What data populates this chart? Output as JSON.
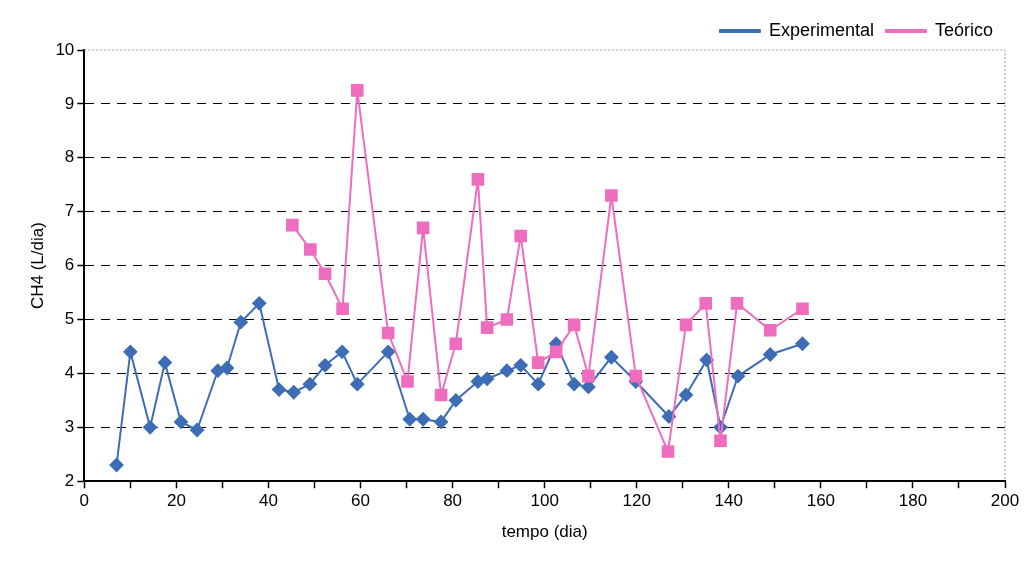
{
  "chart_data": {
    "type": "line",
    "xlabel": "tempo (dia)",
    "ylabel": "CH4 (L/dia)",
    "xlim": [
      0,
      200
    ],
    "xticks": [
      0,
      {
        "value": 10,
        "label": null
      },
      20,
      {
        "value": 30,
        "label": null
      },
      40,
      {
        "value": 50,
        "label": null
      },
      60,
      {
        "value": 70,
        "label": null
      },
      80,
      {
        "value": 90,
        "label": null
      },
      100,
      {
        "value": 110,
        "label": null
      },
      120,
      {
        "value": 130,
        "label": null
      },
      140,
      {
        "value": 150,
        "label": null
      },
      160,
      {
        "value": 170,
        "label": null
      },
      180,
      {
        "value": 190,
        "label": null
      },
      200
    ],
    "ylim": [
      2,
      10
    ],
    "yticks": [
      2,
      3,
      4,
      5,
      6,
      7,
      8,
      9,
      10
    ],
    "grid": "y",
    "legend": "top right",
    "line_style": "solid",
    "series": [
      {
        "name": "Experimental",
        "color": "#3d6db5",
        "marker": "diamond",
        "x": [
          7,
          10,
          14.3,
          17.5,
          21,
          24.5,
          29,
          31,
          34,
          38,
          42.3,
          45.5,
          49,
          52.3,
          56,
          59.3,
          66,
          70.7,
          73.6,
          77.5,
          80.7,
          85.5,
          87.5,
          91.8,
          94.8,
          98.6,
          102.5,
          106.4,
          109.5,
          114.5,
          119.8,
          127,
          130.7,
          135.2,
          138.2,
          142,
          149,
          156
        ],
        "values": [
          2.3,
          4.4,
          3.0,
          4.2,
          3.1,
          2.95,
          4.05,
          4.1,
          4.95,
          5.3,
          3.7,
          3.65,
          3.8,
          4.15,
          4.4,
          3.8,
          4.4,
          3.15,
          3.15,
          3.1,
          3.5,
          3.85,
          3.9,
          4.05,
          4.15,
          3.8,
          4.55,
          3.8,
          3.75,
          4.3,
          3.85,
          3.2,
          3.6,
          4.25,
          3.0,
          3.95,
          4.35,
          4.55
        ]
      },
      {
        "name": "Teórico",
        "color": "#ee6dbf",
        "marker": "square",
        "x": [
          45.2,
          49.1,
          52.3,
          56.1,
          59.3,
          66,
          70.2,
          73.6,
          77.5,
          80.7,
          85.5,
          87.5,
          91.8,
          94.8,
          98.6,
          102.5,
          106.4,
          109.5,
          114.5,
          119.8,
          126.8,
          130.7,
          135,
          138.2,
          141.8,
          149,
          156
        ],
        "values": [
          6.75,
          6.3,
          5.85,
          5.2,
          9.25,
          4.75,
          3.85,
          6.7,
          3.6,
          4.55,
          7.6,
          4.85,
          5.0,
          6.55,
          4.2,
          4.4,
          4.9,
          3.95,
          7.3,
          3.95,
          2.55,
          4.9,
          5.3,
          2.75,
          5.3,
          4.8,
          5.2
        ]
      }
    ]
  }
}
